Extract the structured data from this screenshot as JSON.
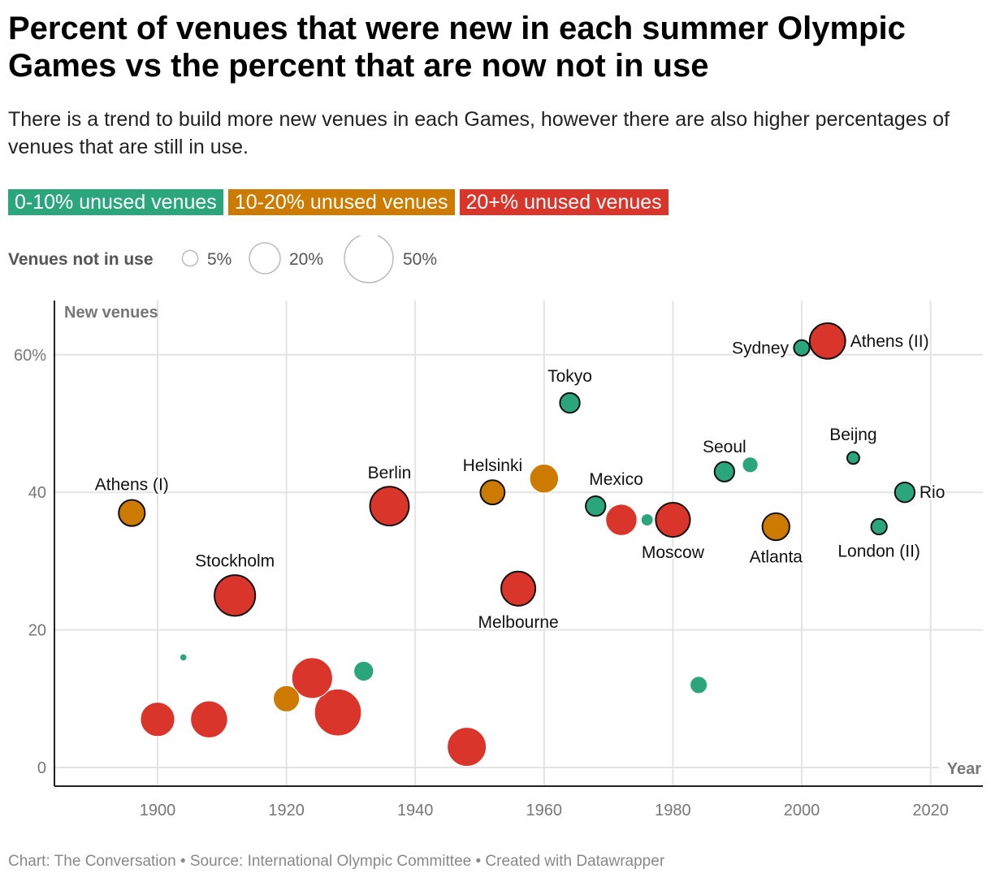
{
  "title": "Percent of venues that were new in each summer Olympic Games vs the percent that are now not in use",
  "subtitle": "There is a trend to build more new venues in each Games, however there are also higher percentages of venues that are still in use.",
  "legend": {
    "categories": [
      {
        "label": "0-10% unused venues",
        "color": "#2aa57c"
      },
      {
        "label": "10-20% unused venues",
        "color": "#cc7a00"
      },
      {
        "label": "20+% unused venues",
        "color": "#d9352a"
      }
    ],
    "size_title": "Venues not in use",
    "size_items": [
      "5%",
      "20%",
      "50%"
    ],
    "size_values": [
      5,
      20,
      50
    ]
  },
  "footer": "Chart: The Conversation • Source: International Olympic Committee • Created with Datawrapper",
  "chart_data": {
    "type": "scatter",
    "xlabel": "Year",
    "ylabel": "New venues",
    "xlim": [
      1884,
      2028
    ],
    "ylim": [
      -3,
      68
    ],
    "xticks": [
      1900,
      1920,
      1940,
      1960,
      1980,
      2000,
      2020
    ],
    "xtick_labels": [
      "1900",
      "1920",
      "1940",
      "1960",
      "1980",
      "2000",
      "2020"
    ],
    "yticks": [
      0,
      20,
      40,
      60
    ],
    "ytick_labels": [
      "0",
      "20",
      "40",
      "60%"
    ],
    "grid": true,
    "size_variable": "Venues not in use (%)",
    "points": [
      {
        "year": 1896,
        "new": 37,
        "unused": 14,
        "cat": 1,
        "label": "Athens (I)"
      },
      {
        "year": 1900,
        "new": 7,
        "unused": 24,
        "cat": 2,
        "label": ""
      },
      {
        "year": 1904,
        "new": 16,
        "unused": 1,
        "cat": 0,
        "label": ""
      },
      {
        "year": 1908,
        "new": 7,
        "unused": 28,
        "cat": 2,
        "label": ""
      },
      {
        "year": 1912,
        "new": 25,
        "unused": 34,
        "cat": 2,
        "label": "Stockholm"
      },
      {
        "year": 1920,
        "new": 10,
        "unused": 14,
        "cat": 1,
        "label": ""
      },
      {
        "year": 1924,
        "new": 13,
        "unused": 34,
        "cat": 2,
        "label": ""
      },
      {
        "year": 1928,
        "new": 8,
        "unused": 45,
        "cat": 2,
        "label": ""
      },
      {
        "year": 1932,
        "new": 14,
        "unused": 8,
        "cat": 0,
        "label": ""
      },
      {
        "year": 1936,
        "new": 38,
        "unused": 31,
        "cat": 2,
        "label": "Berlin"
      },
      {
        "year": 1948,
        "new": 3,
        "unused": 31,
        "cat": 2,
        "label": ""
      },
      {
        "year": 1952,
        "new": 40,
        "unused": 12,
        "cat": 1,
        "label": "Helsinki"
      },
      {
        "year": 1956,
        "new": 26,
        "unused": 24,
        "cat": 2,
        "label": "Melbourne"
      },
      {
        "year": 1960,
        "new": 42,
        "unused": 17,
        "cat": 1,
        "label": ""
      },
      {
        "year": 1964,
        "new": 53,
        "unused": 8,
        "cat": 0,
        "label": "Tokyo"
      },
      {
        "year": 1968,
        "new": 38,
        "unused": 8,
        "cat": 0,
        "label": "Mexico"
      },
      {
        "year": 1972,
        "new": 36,
        "unused": 20,
        "cat": 2,
        "label": ""
      },
      {
        "year": 1976,
        "new": 36,
        "unused": 3,
        "cat": 0,
        "label": ""
      },
      {
        "year": 1980,
        "new": 36,
        "unused": 24,
        "cat": 2,
        "label": "Moscow"
      },
      {
        "year": 1984,
        "new": 12,
        "unused": 6,
        "cat": 0,
        "label": ""
      },
      {
        "year": 1988,
        "new": 43,
        "unused": 8,
        "cat": 0,
        "label": "Seoul"
      },
      {
        "year": 1992,
        "new": 44,
        "unused": 5,
        "cat": 0,
        "label": ""
      },
      {
        "year": 1996,
        "new": 35,
        "unused": 15,
        "cat": 1,
        "label": "Atlanta"
      },
      {
        "year": 2000,
        "new": 61,
        "unused": 5,
        "cat": 0,
        "label": "Sydney"
      },
      {
        "year": 2004,
        "new": 62,
        "unused": 26,
        "cat": 2,
        "label": "Athens (II)"
      },
      {
        "year": 2008,
        "new": 45,
        "unused": 3,
        "cat": 0,
        "label": "Beijng"
      },
      {
        "year": 2012,
        "new": 35,
        "unused": 5,
        "cat": 0,
        "label": "London (II)"
      },
      {
        "year": 2016,
        "new": 40,
        "unused": 8,
        "cat": 0,
        "label": "Rio"
      }
    ]
  }
}
